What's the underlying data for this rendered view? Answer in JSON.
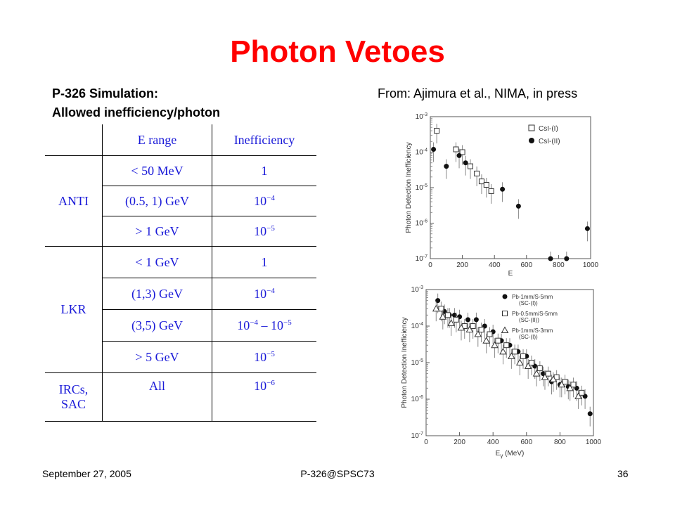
{
  "slide": {
    "title": "Photon Vetoes",
    "subtitle_line1": "P-326 Simulation:",
    "subtitle_line2": "Allowed inefficiency/photon",
    "source": "From: Ajimura et al., NIMA, in press"
  },
  "table": {
    "headers": [
      "E range",
      "Inefficiency"
    ],
    "groups": [
      {
        "name": "ANTI",
        "rows": [
          {
            "range": "< 50 MeV",
            "base": "1",
            "exp": ""
          },
          {
            "range": "(0.5, 1) GeV",
            "base": "10",
            "exp": "−4"
          },
          {
            "range": "> 1 GeV",
            "base": "10",
            "exp": "−5"
          }
        ]
      },
      {
        "name": "LKR",
        "rows": [
          {
            "range": "< 1 GeV",
            "base": "1",
            "exp": ""
          },
          {
            "range": "(1,3) GeV",
            "base": "10",
            "exp": "−4"
          },
          {
            "range": "(3,5) GeV",
            "base": "10",
            "exp": "−4",
            "base2": " – 10",
            "exp2": "−5"
          },
          {
            "range": "> 5 GeV",
            "base": "10",
            "exp": "−5"
          }
        ]
      },
      {
        "name_line1": "IRCs,",
        "name_line2": "SAC",
        "rows": [
          {
            "range": "All",
            "base": "10",
            "exp": "−6"
          }
        ]
      }
    ]
  },
  "plot_top": {
    "ylabel": "Photon Detection Inefficiency",
    "xlabel": "E",
    "y_ticks_base": "10",
    "y_ticks_exp": [
      "-3",
      "-4",
      "-5",
      "-6",
      "-7"
    ],
    "x_ticks": [
      "0",
      "200",
      "400",
      "600",
      "800",
      "1000"
    ],
    "legend": [
      {
        "label": "CsI-(I)",
        "marker": "open-square"
      },
      {
        "label": "CsI-(II)",
        "marker": "filled-circle"
      }
    ]
  },
  "plot_bottom": {
    "ylabel": "Photon Detection Inefficiency",
    "xlabel_main": "E",
    "xlabel_sub": "γ",
    "xlabel_unit": " (MeV)",
    "y_ticks_base": "10",
    "y_ticks_exp": [
      "-3",
      "-4",
      "-5",
      "-6",
      "-7"
    ],
    "x_ticks": [
      "0",
      "200",
      "400",
      "600",
      "800",
      "1000"
    ],
    "legend": [
      {
        "label": "Pb-1mm/S-5mm",
        "note": "(SC-(I))",
        "marker": "filled-circle"
      },
      {
        "label": "Pb-0.5mm/S-5mm",
        "note": "(SC-(II))",
        "marker": "open-square"
      },
      {
        "label": "Pb-1mm/S-3mm",
        "note": "(SC-(I))",
        "marker": "open-triangle"
      }
    ]
  },
  "chart_data": [
    {
      "type": "scatter",
      "title": "",
      "xlabel": "E",
      "ylabel": "Photon Detection Inefficiency",
      "xlim": [
        0,
        1000
      ],
      "ylim": [
        1e-07,
        0.001
      ],
      "yscale": "log",
      "series": [
        {
          "name": "CsI-(I)",
          "marker": "open-square",
          "x": [
            40,
            160,
            200,
            250,
            290,
            320,
            350,
            380
          ],
          "y": [
            0.0004,
            0.00012,
            0.0001,
            4e-05,
            2.5e-05,
            1.5e-05,
            1.2e-05,
            8e-06
          ]
        },
        {
          "name": "CsI-(II)",
          "marker": "filled-circle",
          "x": [
            20,
            100,
            180,
            220,
            450,
            550,
            750,
            850,
            980
          ],
          "y": [
            0.00012,
            4e-05,
            8e-05,
            5e-05,
            9e-06,
            3e-06,
            1e-07,
            1e-07,
            7e-07
          ]
        }
      ],
      "legend": "top-right"
    },
    {
      "type": "scatter",
      "title": "",
      "xlabel": "Eγ (MeV)",
      "ylabel": "Photon Detection Inefficiency",
      "xlim": [
        0,
        1000
      ],
      "ylim": [
        1e-07,
        0.001
      ],
      "yscale": "log",
      "series": [
        {
          "name": "Pb-1mm/S-5mm (SC-(I))",
          "marker": "filled-circle",
          "x": [
            70,
            110,
            140,
            170,
            200,
            250,
            300,
            350,
            400,
            450,
            500,
            550,
            600,
            650,
            700,
            750,
            800,
            850,
            900,
            950,
            980
          ],
          "y": [
            0.0005,
            0.00025,
            0.0002,
            0.0002,
            0.00018,
            0.00015,
            0.00015,
            0.0001,
            7e-05,
            4e-05,
            3e-05,
            2e-05,
            1.5e-05,
            8e-06,
            5e-06,
            3e-06,
            2.5e-06,
            2.2e-06,
            2e-06,
            1.2e-06,
            4e-07
          ]
        },
        {
          "name": "Pb-0.5mm/S-5mm (SC-(II))",
          "marker": "open-square",
          "x": [
            90,
            130,
            180,
            230,
            280,
            330,
            380,
            430,
            480,
            530,
            580,
            630,
            680,
            730,
            780,
            830,
            880,
            930
          ],
          "y": [
            0.0003,
            0.0002,
            0.00015,
            0.0001,
            0.0001,
            8e-05,
            6e-05,
            4e-05,
            3e-05,
            2e-05,
            1.5e-05,
            1e-05,
            7e-06,
            5e-06,
            4e-06,
            3e-06,
            2.5e-06,
            1.5e-06
          ]
        },
        {
          "name": "Pb-1mm/S-3mm (SC-(I))",
          "marker": "open-triangle",
          "x": [
            60,
            100,
            150,
            210,
            260,
            310,
            360,
            410,
            460,
            510,
            560,
            610,
            660,
            710,
            760,
            810,
            860,
            910
          ],
          "y": [
            0.0003,
            0.00018,
            0.00012,
            9e-05,
            8e-05,
            6e-05,
            4e-05,
            3e-05,
            2e-05,
            1.5e-05,
            1e-05,
            8e-06,
            5e-06,
            4e-06,
            3.5e-06,
            2.5e-06,
            2e-06,
            1.2e-06
          ]
        }
      ],
      "legend": "top-right"
    }
  ],
  "footer": {
    "date": "September 27, 2005",
    "center": "P-326@SPSC73",
    "page": "36"
  }
}
